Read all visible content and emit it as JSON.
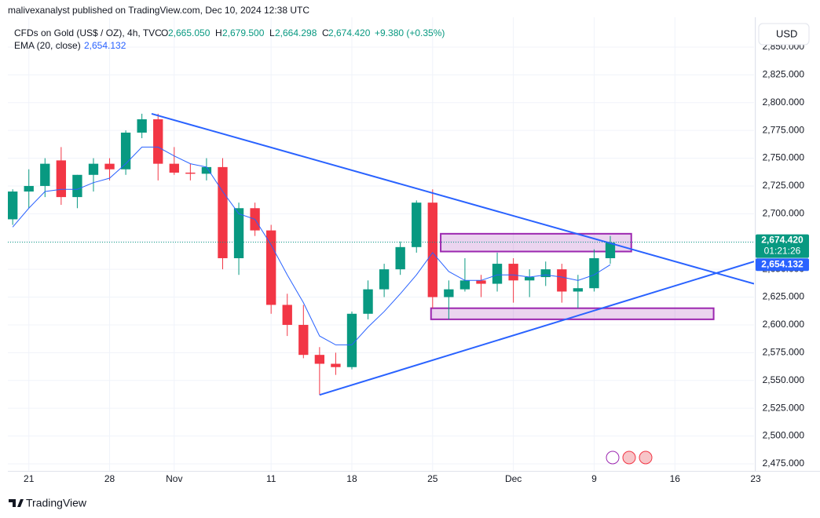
{
  "header": {
    "publisher": "malivexanalyst published on TradingView.com, Dec 10, 2024 12:38 UTC"
  },
  "legend": {
    "symbol": "CFDs on Gold (US$ / OZ), 4h, TVC",
    "o_label": "O",
    "o": "2,665.050",
    "h_label": "H",
    "h": "2,679.500",
    "l_label": "L",
    "l": "2,664.298",
    "c_label": "C",
    "c": "2,674.420",
    "change": "+9.380 (+0.35%)",
    "ema_name": "EMA (20, close)",
    "ema_value": "2,654.132"
  },
  "currency": "USD",
  "footer": "TradingView",
  "chart_data": {
    "type": "candlestick",
    "x": [
      -1,
      0,
      1,
      2,
      3,
      4,
      5,
      6,
      7,
      8,
      9,
      10,
      11,
      12,
      13,
      14,
      15,
      16,
      17,
      18,
      19,
      20,
      21,
      22,
      23,
      24,
      25,
      26,
      27,
      28,
      29,
      30,
      31,
      32,
      33,
      34,
      35,
      36
    ],
    "open": [
      2695,
      2720,
      2725,
      2748,
      2715,
      2735,
      2745,
      2740,
      2773,
      2785,
      2745,
      2737,
      2736,
      2742,
      2660,
      2705,
      2685,
      2618,
      2600,
      2573,
      2565,
      2562,
      2610,
      2632,
      2650,
      2670,
      2710,
      2625,
      2632,
      2640,
      2637,
      2655,
      2640,
      2643,
      2650,
      2630,
      2633,
      2660
    ],
    "high": [
      2722,
      2740,
      2750,
      2760,
      2735,
      2750,
      2750,
      2775,
      2790,
      2790,
      2760,
      2745,
      2750,
      2750,
      2710,
      2710,
      2690,
      2628,
      2618,
      2580,
      2575,
      2612,
      2640,
      2655,
      2675,
      2712,
      2722,
      2640,
      2660,
      2645,
      2665,
      2660,
      2650,
      2657,
      2655,
      2645,
      2668,
      2680
    ],
    "low": [
      2690,
      2705,
      2715,
      2708,
      2705,
      2720,
      2730,
      2735,
      2768,
      2730,
      2735,
      2730,
      2730,
      2650,
      2645,
      2680,
      2610,
      2590,
      2570,
      2537,
      2555,
      2560,
      2605,
      2625,
      2645,
      2665,
      2615,
      2605,
      2630,
      2625,
      2630,
      2620,
      2625,
      2635,
      2620,
      2615,
      2630,
      2655
    ],
    "close": [
      2720,
      2725,
      2745,
      2715,
      2735,
      2745,
      2740,
      2773,
      2785,
      2745,
      2737,
      2736,
      2742,
      2660,
      2705,
      2685,
      2618,
      2600,
      2573,
      2565,
      2562,
      2610,
      2632,
      2650,
      2670,
      2710,
      2625,
      2632,
      2640,
      2637,
      2655,
      2640,
      2643,
      2650,
      2630,
      2633,
      2660,
      2674
    ],
    "up_color": "#089981",
    "down_color": "#f23645",
    "series": [
      {
        "name": "EMA (20, close)",
        "color": "#2962ff",
        "values": [
          2688,
          2705,
          2720,
          2722,
          2722,
          2728,
          2732,
          2745,
          2760,
          2760,
          2752,
          2745,
          2742,
          2720,
          2700,
          2695,
          2672,
          2645,
          2620,
          2590,
          2582,
          2582,
          2598,
          2612,
          2628,
          2645,
          2665,
          2648,
          2640,
          2640,
          2645,
          2645,
          2643,
          2645,
          2643,
          2640,
          2645,
          2654.132
        ]
      }
    ],
    "trendlines": [
      {
        "color": "#2962ff",
        "x": [
          7.6,
          44.9
        ],
        "y": [
          2790,
          2637
        ]
      },
      {
        "color": "#2962ff",
        "x": [
          18,
          44.9
        ],
        "y": [
          2537,
          2657
        ]
      }
    ],
    "zones": [
      {
        "color": "#9c27b0",
        "x": [
          25.5,
          37.3
        ],
        "y": [
          2666,
          2682
        ]
      },
      {
        "color": "#9c27b0",
        "x": [
          24.9,
          42.4
        ],
        "y": [
          2605,
          2615
        ]
      }
    ],
    "last_price": {
      "value": 2674.42,
      "label": "2,674.420"
    },
    "countdown": "01:21:26",
    "ema_last": {
      "value": 2654.132,
      "label": "2,654.132"
    },
    "xlim": [
      -1.3,
      44.9
    ],
    "ylim": [
      2468.6,
      2876.8
    ],
    "xticks": [
      {
        "value": 0,
        "label": "21"
      },
      {
        "value": 5,
        "label": "28"
      },
      {
        "value": 9,
        "label": "Nov"
      },
      {
        "value": 15,
        "label": "11"
      },
      {
        "value": 20,
        "label": "18"
      },
      {
        "value": 25,
        "label": "25"
      },
      {
        "value": 30,
        "label": "Dec"
      },
      {
        "value": 35,
        "label": "9"
      },
      {
        "value": 40,
        "label": "16"
      },
      {
        "value": 45,
        "label": "23"
      }
    ],
    "yticks": [
      {
        "value": 2475,
        "label": "2,475.000"
      },
      {
        "value": 2500,
        "label": "2,500.000"
      },
      {
        "value": 2525,
        "label": "2,525.000"
      },
      {
        "value": 2550,
        "label": "2,550.000"
      },
      {
        "value": 2575,
        "label": "2,575.000"
      },
      {
        "value": 2600,
        "label": "2,600.000"
      },
      {
        "value": 2625,
        "label": "2,625.000"
      },
      {
        "value": 2650,
        "label": "2,650.000"
      },
      {
        "value": 2675,
        "label": "2,675.000"
      },
      {
        "value": 2700,
        "label": "2,700.000"
      },
      {
        "value": 2725,
        "label": "2,725.000"
      },
      {
        "value": 2750,
        "label": "2,750.000"
      },
      {
        "value": 2775,
        "label": "2,775.000"
      },
      {
        "value": 2800,
        "label": "2,800.000"
      },
      {
        "value": 2825,
        "label": "2,825.000"
      },
      {
        "value": 2850,
        "label": "2,850.000"
      }
    ],
    "grid": true
  }
}
